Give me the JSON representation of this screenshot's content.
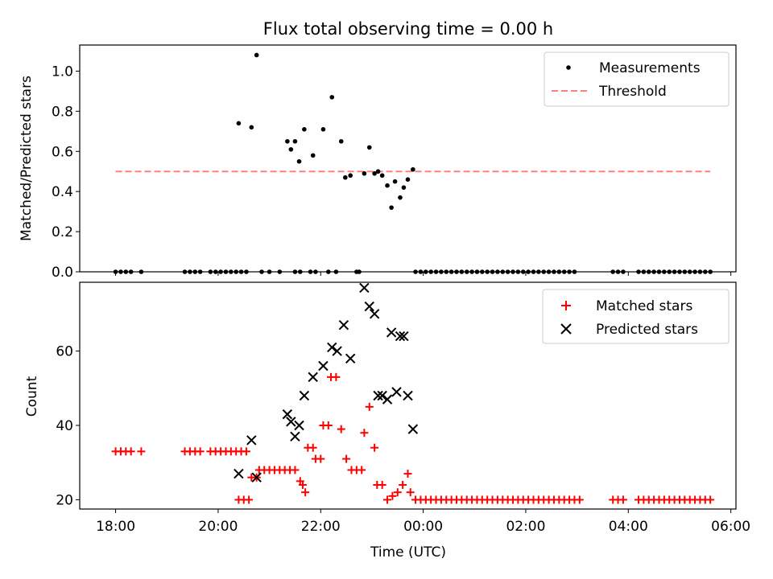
{
  "figure": {
    "title": "Flux total observing time = 0.00 h"
  },
  "chart_data": [
    {
      "type": "scatter",
      "panel": "top",
      "ylabel": "Matched/Predicted stars",
      "xlabel": "",
      "x_is_time_hours_since_1800": true,
      "xlim": [
        -0.7,
        12.1
      ],
      "ylim": [
        0.0,
        1.13
      ],
      "yticks": [
        0.0,
        0.2,
        0.4,
        0.6,
        0.8,
        1.0
      ],
      "ytick_labels": [
        "0.0",
        "0.2",
        "0.4",
        "0.6",
        "0.8",
        "1.0"
      ],
      "legend_position": "top-right",
      "series": [
        {
          "name": "Measurements",
          "marker": "dot",
          "color": "#000000",
          "points": [
            [
              0.0,
              0
            ],
            [
              0.1,
              0
            ],
            [
              0.2,
              0
            ],
            [
              0.3,
              0
            ],
            [
              0.5,
              0
            ],
            [
              1.35,
              0
            ],
            [
              1.45,
              0
            ],
            [
              1.55,
              0
            ],
            [
              1.65,
              0
            ],
            [
              1.85,
              0
            ],
            [
              1.95,
              0
            ],
            [
              2.05,
              0
            ],
            [
              2.15,
              0
            ],
            [
              2.25,
              0
            ],
            [
              2.35,
              0
            ],
            [
              2.45,
              0
            ],
            [
              2.55,
              0
            ],
            [
              2.85,
              0
            ],
            [
              2.4,
              0.74
            ],
            [
              2.65,
              0.72
            ],
            [
              2.75,
              1.08
            ],
            [
              3.0,
              0
            ],
            [
              3.2,
              0
            ],
            [
              3.5,
              0
            ],
            [
              3.6,
              0
            ],
            [
              3.8,
              0
            ],
            [
              3.35,
              0.65
            ],
            [
              3.42,
              0.61
            ],
            [
              3.5,
              0.65
            ],
            [
              3.58,
              0.55
            ],
            [
              3.68,
              0.71
            ],
            [
              3.85,
              0.58
            ],
            [
              4.05,
              0.71
            ],
            [
              4.22,
              0.87
            ],
            [
              4.4,
              0.65
            ],
            [
              4.48,
              0.47
            ],
            [
              4.58,
              0.48
            ],
            [
              4.85,
              0.49
            ],
            [
              4.95,
              0.62
            ],
            [
              5.05,
              0.49
            ],
            [
              5.12,
              0.5
            ],
            [
              5.2,
              0.48
            ],
            [
              5.3,
              0.43
            ],
            [
              5.38,
              0.32
            ],
            [
              5.45,
              0.45
            ],
            [
              5.55,
              0.37
            ],
            [
              5.62,
              0.42
            ],
            [
              5.7,
              0.46
            ],
            [
              5.8,
              0.51
            ],
            [
              3.9,
              0
            ],
            [
              4.15,
              0
            ],
            [
              4.3,
              0
            ],
            [
              4.7,
              0
            ],
            [
              4.75,
              0
            ],
            [
              5.85,
              0
            ],
            [
              5.95,
              0
            ],
            [
              6.05,
              0
            ],
            [
              6.15,
              0
            ],
            [
              6.25,
              0
            ],
            [
              6.35,
              0
            ],
            [
              6.45,
              0
            ],
            [
              6.55,
              0
            ],
            [
              6.65,
              0
            ],
            [
              6.75,
              0
            ],
            [
              6.85,
              0
            ],
            [
              6.95,
              0
            ],
            [
              7.05,
              0
            ],
            [
              7.15,
              0
            ],
            [
              7.25,
              0
            ],
            [
              7.35,
              0
            ],
            [
              7.45,
              0
            ],
            [
              7.55,
              0
            ],
            [
              7.65,
              0
            ],
            [
              7.75,
              0
            ],
            [
              7.85,
              0
            ],
            [
              7.95,
              0
            ],
            [
              8.05,
              0
            ],
            [
              8.15,
              0
            ],
            [
              8.25,
              0
            ],
            [
              8.35,
              0
            ],
            [
              8.45,
              0
            ],
            [
              8.55,
              0
            ],
            [
              8.65,
              0
            ],
            [
              8.75,
              0
            ],
            [
              8.85,
              0
            ],
            [
              8.95,
              0
            ],
            [
              9.7,
              0
            ],
            [
              9.8,
              0
            ],
            [
              9.9,
              0
            ],
            [
              10.2,
              0
            ],
            [
              10.3,
              0
            ],
            [
              10.4,
              0
            ],
            [
              10.5,
              0
            ],
            [
              10.6,
              0
            ],
            [
              10.7,
              0
            ],
            [
              10.8,
              0
            ],
            [
              10.9,
              0
            ],
            [
              11.0,
              0
            ],
            [
              11.1,
              0
            ],
            [
              11.2,
              0
            ],
            [
              11.3,
              0
            ],
            [
              11.4,
              0
            ],
            [
              11.5,
              0
            ],
            [
              11.6,
              0
            ]
          ]
        },
        {
          "name": "Threshold",
          "line_style": "dashed",
          "color": "#ff8080",
          "points": [
            [
              0.0,
              0.5
            ],
            [
              11.6,
              0.5
            ]
          ]
        }
      ]
    },
    {
      "type": "scatter",
      "panel": "bottom",
      "xlabel": "Time (UTC)",
      "ylabel": "Count",
      "xlim": [
        -0.7,
        12.1
      ],
      "ylim": [
        17.5,
        78.5
      ],
      "xticks": [
        0,
        2,
        4,
        6,
        8,
        10,
        12
      ],
      "xtick_labels": [
        "18:00",
        "20:00",
        "22:00",
        "00:00",
        "02:00",
        "04:00",
        "06:00"
      ],
      "yticks": [
        20,
        40,
        60
      ],
      "ytick_labels": [
        "20",
        "40",
        "60"
      ],
      "legend_position": "top-right",
      "series": [
        {
          "name": "Matched stars",
          "marker": "plus",
          "color": "#ff0000",
          "points": [
            [
              0.0,
              33
            ],
            [
              0.1,
              33
            ],
            [
              0.2,
              33
            ],
            [
              0.3,
              33
            ],
            [
              0.5,
              33
            ],
            [
              1.35,
              33
            ],
            [
              1.45,
              33
            ],
            [
              1.55,
              33
            ],
            [
              1.65,
              33
            ],
            [
              1.85,
              33
            ],
            [
              1.95,
              33
            ],
            [
              2.05,
              33
            ],
            [
              2.15,
              33
            ],
            [
              2.25,
              33
            ],
            [
              2.35,
              33
            ],
            [
              2.45,
              33
            ],
            [
              2.55,
              33
            ],
            [
              2.4,
              20
            ],
            [
              2.5,
              20
            ],
            [
              2.6,
              20
            ],
            [
              2.65,
              26
            ],
            [
              2.75,
              26
            ],
            [
              2.8,
              28
            ],
            [
              2.9,
              28
            ],
            [
              3.0,
              28
            ],
            [
              3.1,
              28
            ],
            [
              3.2,
              28
            ],
            [
              3.3,
              28
            ],
            [
              3.4,
              28
            ],
            [
              3.5,
              28
            ],
            [
              3.6,
              25
            ],
            [
              3.65,
              24
            ],
            [
              3.7,
              22
            ],
            [
              3.75,
              34
            ],
            [
              3.85,
              34
            ],
            [
              3.9,
              31
            ],
            [
              4.0,
              31
            ],
            [
              4.05,
              40
            ],
            [
              4.15,
              40
            ],
            [
              4.2,
              53
            ],
            [
              4.3,
              53
            ],
            [
              4.4,
              39
            ],
            [
              4.5,
              31
            ],
            [
              4.6,
              28
            ],
            [
              4.7,
              28
            ],
            [
              4.8,
              28
            ],
            [
              4.85,
              38
            ],
            [
              4.95,
              45
            ],
            [
              5.05,
              34
            ],
            [
              5.1,
              24
            ],
            [
              5.2,
              24
            ],
            [
              5.3,
              20
            ],
            [
              5.4,
              21
            ],
            [
              5.5,
              22
            ],
            [
              5.6,
              24
            ],
            [
              5.7,
              27
            ],
            [
              5.75,
              22
            ],
            [
              5.85,
              20
            ],
            [
              5.95,
              20
            ],
            [
              6.05,
              20
            ],
            [
              6.15,
              20
            ],
            [
              6.25,
              20
            ],
            [
              6.35,
              20
            ],
            [
              6.45,
              20
            ],
            [
              6.55,
              20
            ],
            [
              6.65,
              20
            ],
            [
              6.75,
              20
            ],
            [
              6.85,
              20
            ],
            [
              6.95,
              20
            ],
            [
              7.05,
              20
            ],
            [
              7.15,
              20
            ],
            [
              7.25,
              20
            ],
            [
              7.35,
              20
            ],
            [
              7.45,
              20
            ],
            [
              7.55,
              20
            ],
            [
              7.65,
              20
            ],
            [
              7.75,
              20
            ],
            [
              7.85,
              20
            ],
            [
              7.95,
              20
            ],
            [
              8.05,
              20
            ],
            [
              8.15,
              20
            ],
            [
              8.25,
              20
            ],
            [
              8.35,
              20
            ],
            [
              8.45,
              20
            ],
            [
              8.55,
              20
            ],
            [
              8.65,
              20
            ],
            [
              8.75,
              20
            ],
            [
              8.85,
              20
            ],
            [
              8.95,
              20
            ],
            [
              9.05,
              20
            ],
            [
              9.7,
              20
            ],
            [
              9.8,
              20
            ],
            [
              9.9,
              20
            ],
            [
              10.2,
              20
            ],
            [
              10.3,
              20
            ],
            [
              10.4,
              20
            ],
            [
              10.5,
              20
            ],
            [
              10.6,
              20
            ],
            [
              10.7,
              20
            ],
            [
              10.8,
              20
            ],
            [
              10.9,
              20
            ],
            [
              11.0,
              20
            ],
            [
              11.1,
              20
            ],
            [
              11.2,
              20
            ],
            [
              11.3,
              20
            ],
            [
              11.4,
              20
            ],
            [
              11.5,
              20
            ],
            [
              11.6,
              20
            ]
          ]
        },
        {
          "name": "Predicted stars",
          "marker": "x",
          "color": "#000000",
          "points": [
            [
              2.4,
              27
            ],
            [
              2.65,
              36
            ],
            [
              2.75,
              26
            ],
            [
              3.35,
              43
            ],
            [
              3.42,
              41
            ],
            [
              3.5,
              37
            ],
            [
              3.58,
              40
            ],
            [
              3.68,
              48
            ],
            [
              3.85,
              53
            ],
            [
              4.05,
              56
            ],
            [
              4.22,
              61
            ],
            [
              4.32,
              60
            ],
            [
              4.45,
              67
            ],
            [
              4.58,
              58
            ],
            [
              4.85,
              77
            ],
            [
              4.95,
              72
            ],
            [
              5.05,
              70
            ],
            [
              5.12,
              48
            ],
            [
              5.2,
              48
            ],
            [
              5.3,
              47
            ],
            [
              5.38,
              65
            ],
            [
              5.48,
              49
            ],
            [
              5.55,
              64
            ],
            [
              5.62,
              64
            ],
            [
              5.7,
              48
            ],
            [
              5.8,
              39
            ]
          ]
        }
      ]
    }
  ]
}
